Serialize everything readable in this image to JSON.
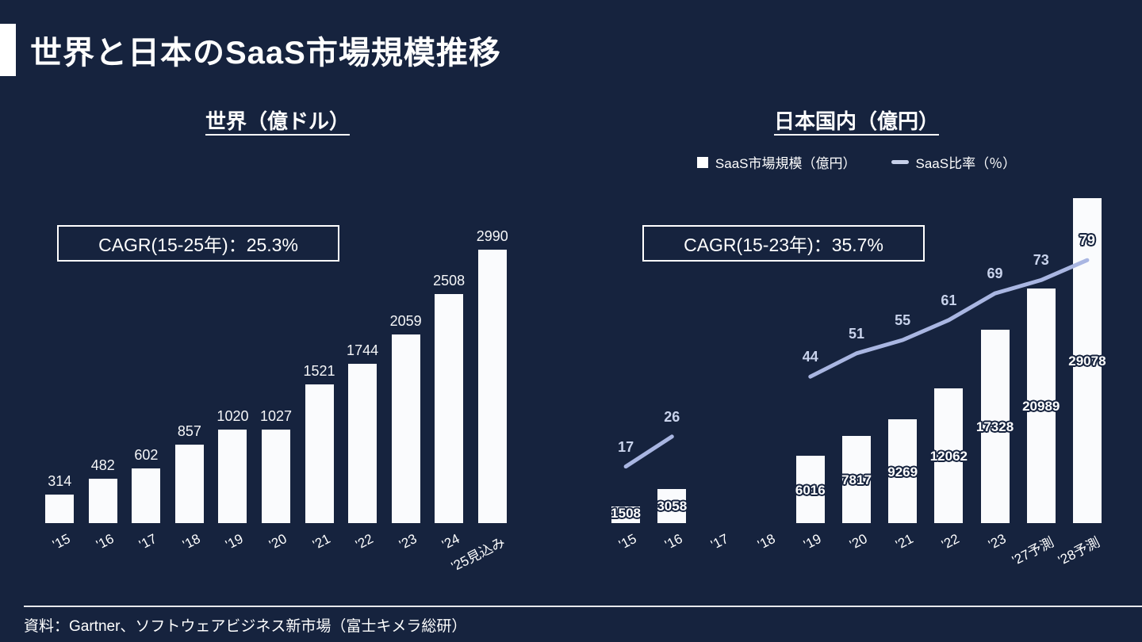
{
  "page": {
    "title": "世界と日本のSaaS市場規模推移",
    "source": "資料：Gartner、ソフトウェアビジネス新市場（富士キメラ総研）"
  },
  "colors": {
    "background": "#16233E",
    "bar": "#FAFBFD",
    "line": "#A9B6E2",
    "line_label": "#C9D3EC",
    "text": "#FFFFFF"
  },
  "chart_data": [
    {
      "type": "bar",
      "title": "世界（億ドル）",
      "cagr_label": "CAGR(15-25年)：25.3%",
      "unit": "億ドル",
      "categories": [
        "'15",
        "'16",
        "'17",
        "'18",
        "'19",
        "'20",
        "'21",
        "'22",
        "'23",
        "'24",
        "'25見込み"
      ],
      "values": [
        314,
        482,
        602,
        857,
        1020,
        1027,
        1521,
        1744,
        2059,
        2508,
        2990
      ],
      "ylim": [
        0,
        3000
      ],
      "grid": false,
      "value_label_position": "above"
    },
    {
      "type": "bar+line",
      "title": "日本国内（億円）",
      "cagr_label": "CAGR(15-23年)：35.7%",
      "unit": "億円",
      "categories": [
        "'15",
        "'16",
        "'17",
        "'18",
        "'19",
        "'20",
        "'21",
        "'22",
        "'23",
        "'27予測",
        "'28予測"
      ],
      "series": [
        {
          "name": "SaaS市場規模（億円）",
          "type": "bar",
          "values": [
            1508,
            3058,
            null,
            null,
            6016,
            7817,
            9269,
            12062,
            17328,
            20989,
            29078
          ]
        },
        {
          "name": "SaaS比率（％）",
          "type": "line",
          "values": [
            17,
            26,
            null,
            null,
            44,
            51,
            55,
            61,
            69,
            73,
            79
          ]
        }
      ],
      "ylim_bar": [
        0,
        30000
      ],
      "ylim_line": [
        0,
        100
      ],
      "legend_position": "top",
      "grid": false,
      "value_label_position": "center"
    }
  ]
}
